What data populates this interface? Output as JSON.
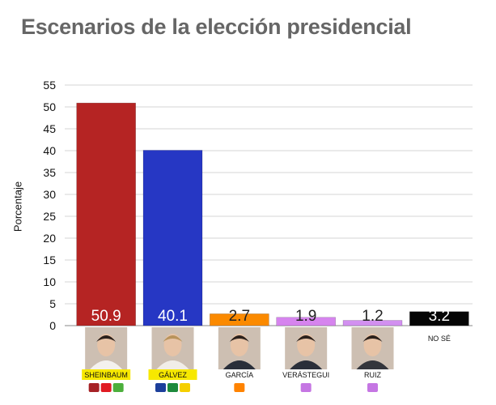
{
  "chart_data": {
    "type": "bar",
    "title": "Escenarios de la elección presidencial",
    "xlabel": "",
    "ylabel": "Porcentaje",
    "ylim": [
      0,
      55
    ],
    "yticks": [
      0,
      5,
      10,
      15,
      20,
      25,
      30,
      35,
      40,
      45,
      50,
      55
    ],
    "grid": true,
    "categories": [
      "SHEINBAUM",
      "GÁLVEZ",
      "GARCÍA",
      "VERÁSTEGUI",
      "RUIZ",
      "NO SÉ"
    ],
    "values": [
      50.9,
      40.1,
      2.7,
      1.9,
      1.2,
      3.2
    ],
    "value_labels": [
      "50.9",
      "40.1",
      "2.7",
      "1.9",
      "1.2",
      "3.2"
    ],
    "colors": [
      "#b52423",
      "#2637c4",
      "#fb8a00",
      "#d684ee",
      "#d290f0",
      "#050505"
    ],
    "label_highlight": [
      true,
      true,
      false,
      false,
      false,
      false
    ],
    "party_logos": [
      [
        "MORENA",
        "PT",
        "VERDE"
      ],
      [
        "PAN",
        "PRI",
        "PRD"
      ],
      [
        "MC"
      ],
      [
        "SM"
      ],
      [
        "SM"
      ],
      []
    ]
  }
}
